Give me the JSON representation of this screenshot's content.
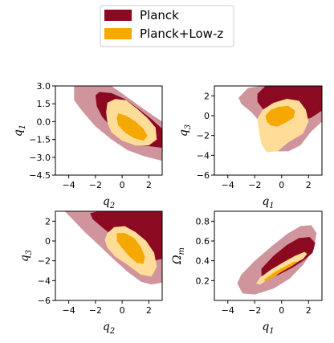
{
  "chart_data": {
    "type": "contour",
    "legend": {
      "placement": "top-center",
      "entries": [
        {
          "name": "Planck",
          "color": "#8b0a22"
        },
        {
          "name": "Planck+Low-z",
          "color": "#f5a800"
        }
      ]
    },
    "colors": {
      "planck_outer": "#cb8892",
      "planck_inner": "#8b0a22",
      "lowz_outer": "#ffdd99",
      "lowz_inner": "#f5a800"
    },
    "panels": [
      {
        "id": "q1-vs-q2",
        "xlabel": "q_2",
        "ylabel": "q_1",
        "xlim": [
          -5,
          3
        ],
        "ylim": [
          -4.5,
          3.0
        ],
        "xticks": [
          -4,
          -2,
          0,
          2
        ],
        "yticks": [
          -4.5,
          -3.0,
          -1.5,
          0.0,
          1.5,
          3.0
        ],
        "ytick_labels": [
          "−4.5",
          "−3.0",
          "−1.5",
          "0.0",
          "1.5",
          "3.0"
        ],
        "contours": [
          {
            "series": "Planck",
            "level": "95%",
            "points": [
              [
                -3.6,
                3.0
              ],
              [
                -3.6,
                1.8
              ],
              [
                -3.0,
                0.9
              ],
              [
                -2.0,
                -0.4
              ],
              [
                -0.8,
                -1.5
              ],
              [
                0.4,
                -2.4
              ],
              [
                1.6,
                -2.9
              ],
              [
                3.0,
                -3.3
              ],
              [
                3.0,
                0.0
              ],
              [
                2.2,
                0.6
              ],
              [
                1.2,
                1.4
              ],
              [
                0.2,
                2.2
              ],
              [
                -0.8,
                3.0
              ]
            ]
          },
          {
            "series": "Planck",
            "level": "68%",
            "points": [
              [
                -2.0,
                2.2
              ],
              [
                -1.9,
                1.3
              ],
              [
                -1.5,
                0.4
              ],
              [
                -0.7,
                -0.6
              ],
              [
                0.4,
                -1.5
              ],
              [
                1.5,
                -2.0
              ],
              [
                3.0,
                -2.2
              ],
              [
                3.0,
                -0.6
              ],
              [
                2.2,
                0.2
              ],
              [
                1.2,
                1.1
              ],
              [
                0.2,
                1.9
              ],
              [
                -0.8,
                2.4
              ],
              [
                -1.7,
                2.5
              ]
            ]
          },
          {
            "series": "Planck+Low-z",
            "level": "95%",
            "points": [
              [
                -1.1,
                1.6
              ],
              [
                -0.5,
                1.9
              ],
              [
                0.3,
                1.8
              ],
              [
                1.1,
                1.1
              ],
              [
                1.9,
                0.3
              ],
              [
                2.5,
                -0.5
              ],
              [
                2.6,
                -1.5
              ],
              [
                2.0,
                -2.0
              ],
              [
                1.0,
                -2.0
              ],
              [
                0.0,
                -1.6
              ],
              [
                -0.8,
                -0.9
              ],
              [
                -1.1,
                -0.1
              ],
              [
                -1.2,
                0.8
              ]
            ]
          },
          {
            "series": "Planck+Low-z",
            "level": "68%",
            "points": [
              [
                -0.3,
                0.7
              ],
              [
                0.3,
                0.5
              ],
              [
                1.0,
                0.0
              ],
              [
                1.6,
                -0.6
              ],
              [
                1.9,
                -1.2
              ],
              [
                1.6,
                -1.6
              ],
              [
                0.9,
                -1.4
              ],
              [
                0.2,
                -0.9
              ],
              [
                -0.3,
                -0.3
              ],
              [
                -0.4,
                0.3
              ]
            ]
          }
        ]
      },
      {
        "id": "q3-vs-q1",
        "xlabel": "q_1",
        "ylabel": "q_3",
        "xlim": [
          -5,
          3
        ],
        "ylim": [
          -6,
          3
        ],
        "xticks": [
          -4,
          -2,
          0,
          2
        ],
        "yticks": [
          -6,
          -4,
          -2,
          0,
          2
        ],
        "contours": [
          {
            "series": "Planck",
            "level": "95%",
            "points": [
              [
                -3.2,
                1.8
              ],
              [
                -2.5,
                2.8
              ],
              [
                -1.5,
                3.0
              ],
              [
                3.0,
                3.0
              ],
              [
                3.0,
                -0.6
              ],
              [
                2.2,
                -1.6
              ],
              [
                1.4,
                -3.0
              ],
              [
                0.5,
                -3.6
              ],
              [
                -0.3,
                -3.6
              ],
              [
                -0.8,
                -2.6
              ],
              [
                -1.3,
                -1.2
              ],
              [
                -2.2,
                0.3
              ],
              [
                -3.0,
                1.2
              ]
            ]
          },
          {
            "series": "Planck",
            "level": "68%",
            "points": [
              [
                -1.8,
                2.2
              ],
              [
                -1.2,
                3.0
              ],
              [
                3.0,
                3.0
              ],
              [
                3.0,
                0.5
              ],
              [
                2.2,
                -0.2
              ],
              [
                1.2,
                -0.7
              ],
              [
                0.3,
                -0.8
              ],
              [
                -0.6,
                -0.3
              ],
              [
                -1.3,
                0.5
              ],
              [
                -1.8,
                1.4
              ]
            ]
          },
          {
            "series": "Planck+Low-z",
            "level": "95%",
            "points": [
              [
                -1.8,
                -0.3
              ],
              [
                -1.4,
                0.6
              ],
              [
                -0.6,
                1.3
              ],
              [
                0.4,
                1.7
              ],
              [
                1.3,
                1.5
              ],
              [
                1.8,
                0.6
              ],
              [
                2.0,
                -0.6
              ],
              [
                1.6,
                -1.8
              ],
              [
                0.5,
                -2.7
              ],
              [
                -0.3,
                -3.6
              ],
              [
                -1.1,
                -3.7
              ],
              [
                -1.5,
                -2.9
              ],
              [
                -1.7,
                -1.5
              ]
            ]
          },
          {
            "series": "Planck+Low-z",
            "level": "68%",
            "points": [
              [
                -1.2,
                0.0
              ],
              [
                -0.8,
                0.6
              ],
              [
                -0.2,
                0.9
              ],
              [
                0.5,
                1.0
              ],
              [
                1.0,
                0.5
              ],
              [
                0.9,
                -0.2
              ],
              [
                0.3,
                -0.7
              ],
              [
                -0.3,
                -1.1
              ],
              [
                -0.8,
                -1.0
              ],
              [
                -1.1,
                -0.6
              ]
            ]
          }
        ]
      },
      {
        "id": "q3-vs-q2",
        "xlabel": "q_2",
        "ylabel": "q_3",
        "xlim": [
          -5,
          3
        ],
        "ylim": [
          -6,
          3
        ],
        "xticks": [
          -4,
          -2,
          0,
          2
        ],
        "yticks": [
          -6,
          -4,
          -2,
          0,
          2
        ],
        "contours": [
          {
            "series": "Planck",
            "level": "95%",
            "points": [
              [
                -4.3,
                3.0
              ],
              [
                3.0,
                3.0
              ],
              [
                3.0,
                -4.2
              ],
              [
                2.2,
                -4.4
              ],
              [
                1.4,
                -4.1
              ],
              [
                0.4,
                -3.1
              ],
              [
                -0.5,
                -2.0
              ],
              [
                -1.6,
                -0.6
              ],
              [
                -2.8,
                0.9
              ],
              [
                -3.8,
                2.3
              ]
            ]
          },
          {
            "series": "Planck",
            "level": "68%",
            "points": [
              [
                -2.4,
                2.8
              ],
              [
                -1.8,
                3.0
              ],
              [
                3.0,
                3.0
              ],
              [
                3.0,
                -1.8
              ],
              [
                2.3,
                -2.0
              ],
              [
                1.4,
                -1.5
              ],
              [
                0.4,
                -0.7
              ],
              [
                -0.6,
                0.4
              ],
              [
                -1.6,
                1.5
              ],
              [
                -2.2,
                2.2
              ]
            ]
          },
          {
            "series": "Planck+Low-z",
            "level": "95%",
            "points": [
              [
                -1.1,
                0.8
              ],
              [
                -0.6,
                1.4
              ],
              [
                0.2,
                1.5
              ],
              [
                1.0,
                0.9
              ],
              [
                1.8,
                0.0
              ],
              [
                2.4,
                -1.2
              ],
              [
                2.6,
                -2.6
              ],
              [
                2.2,
                -3.6
              ],
              [
                1.4,
                -3.4
              ],
              [
                0.4,
                -2.4
              ],
              [
                -0.5,
                -1.6
              ],
              [
                -1.1,
                -0.7
              ],
              [
                -1.3,
                0.1
              ]
            ]
          },
          {
            "series": "Planck+Low-z",
            "level": "68%",
            "points": [
              [
                -0.4,
                0.8
              ],
              [
                0.2,
                0.8
              ],
              [
                0.9,
                0.3
              ],
              [
                1.4,
                -0.6
              ],
              [
                1.7,
                -1.6
              ],
              [
                1.6,
                -2.3
              ],
              [
                1.1,
                -2.2
              ],
              [
                0.5,
                -1.5
              ],
              [
                0.0,
                -0.7
              ],
              [
                -0.4,
                0.0
              ]
            ]
          }
        ]
      },
      {
        "id": "omegam-vs-q1",
        "xlabel": "q_1",
        "ylabel": "Ω_m",
        "xlim": [
          -5,
          3
        ],
        "ylim": [
          0.0,
          0.9
        ],
        "xticks": [
          -4,
          -2,
          0,
          2
        ],
        "yticks": [
          0.2,
          0.4,
          0.6,
          0.8
        ],
        "ytick_labels": [
          "0.2",
          "0.4",
          "0.6",
          "0.8"
        ],
        "contours": [
          {
            "series": "Planck",
            "level": "95%",
            "points": [
              [
                -3.3,
                0.17
              ],
              [
                -3.0,
                0.26
              ],
              [
                -2.0,
                0.4
              ],
              [
                -0.8,
                0.54
              ],
              [
                0.4,
                0.67
              ],
              [
                1.4,
                0.75
              ],
              [
                2.2,
                0.76
              ],
              [
                2.6,
                0.68
              ],
              [
                2.4,
                0.52
              ],
              [
                1.6,
                0.36
              ],
              [
                0.6,
                0.22
              ],
              [
                -0.6,
                0.12
              ],
              [
                -2.0,
                0.06
              ],
              [
                -2.9,
                0.07
              ]
            ]
          },
          {
            "series": "Planck",
            "level": "68%",
            "points": [
              [
                -1.5,
                0.32
              ],
              [
                -0.6,
                0.45
              ],
              [
                0.4,
                0.56
              ],
              [
                1.3,
                0.63
              ],
              [
                2.1,
                0.64
              ],
              [
                2.5,
                0.58
              ],
              [
                2.3,
                0.48
              ],
              [
                1.6,
                0.4
              ],
              [
                0.8,
                0.33
              ],
              [
                -0.2,
                0.26
              ],
              [
                -1.0,
                0.23
              ],
              [
                -1.5,
                0.25
              ]
            ]
          },
          {
            "series": "Planck+Low-z",
            "level": "95%",
            "points": [
              [
                -1.9,
                0.17
              ],
              [
                -1.6,
                0.23
              ],
              [
                -0.8,
                0.31
              ],
              [
                0.2,
                0.39
              ],
              [
                1.0,
                0.45
              ],
              [
                1.7,
                0.49
              ],
              [
                1.9,
                0.47
              ],
              [
                1.6,
                0.42
              ],
              [
                0.8,
                0.36
              ],
              [
                -0.1,
                0.29
              ],
              [
                -0.9,
                0.22
              ],
              [
                -1.6,
                0.16
              ]
            ]
          },
          {
            "series": "Planck+Low-z",
            "level": "68%",
            "points": [
              [
                -1.3,
                0.21
              ],
              [
                -0.6,
                0.28
              ],
              [
                0.2,
                0.34
              ],
              [
                0.9,
                0.39
              ],
              [
                1.2,
                0.39
              ],
              [
                0.8,
                0.35
              ],
              [
                0.0,
                0.29
              ],
              [
                -0.7,
                0.23
              ],
              [
                -1.2,
                0.19
              ]
            ]
          }
        ]
      }
    ]
  }
}
